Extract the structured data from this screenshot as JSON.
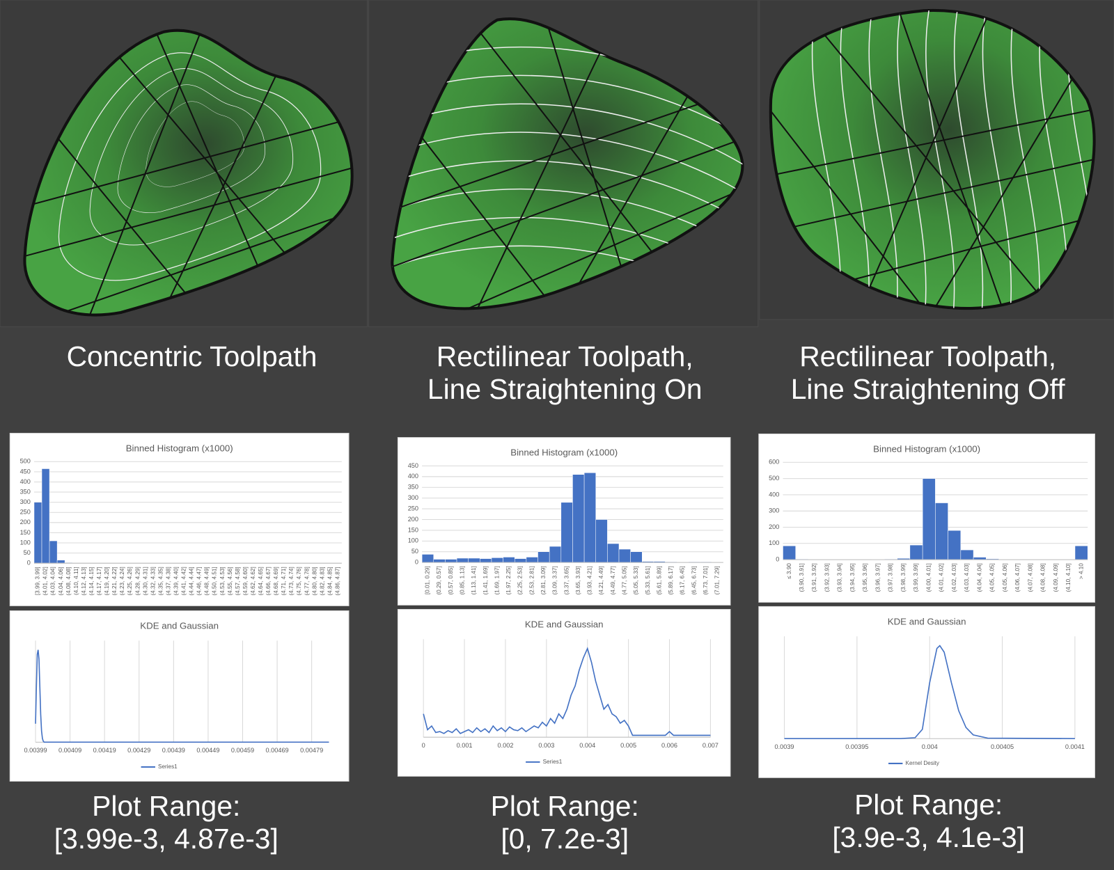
{
  "captions": [
    [
      "Concentric Toolpath"
    ],
    [
      "Rectilinear Toolpath,",
      "Line Straightening On"
    ],
    [
      "Rectilinear Toolpath,",
      "Line Straightening Off"
    ]
  ],
  "plot_ranges": [
    [
      "Plot Range:",
      "[3.99e-3, 4.87e-3]"
    ],
    [
      "Plot Range:",
      "[0, 7.2e-3]"
    ],
    [
      "Plot Range:",
      "[3.9e-3, 4.1e-3]"
    ]
  ],
  "chart_data": [
    {
      "type": "bar",
      "title": "Binned Histogram (x1000)",
      "color": "#4472c4",
      "grid": true,
      "categories": [
        "[3.99, 3.99]",
        "(4.01, 4.02]",
        "(4.03, 4.04]",
        "(4.04, 4.06]",
        "(4.08, 4.08]",
        "(4.10, 4.11]",
        "(4.12, 4.13]",
        "(4.14, 4.15]",
        "(4.17, 4.17]",
        "(4.19, 4.20]",
        "(4.21, 4.22]",
        "(4.23, 4.24]",
        "(4.25, 4.26]",
        "(4.28, 4.29]",
        "(4.30, 4.31]",
        "(4.32, 4.33]",
        "(4.35, 4.35]",
        "(4.37, 4.38]",
        "(4.39, 4.40]",
        "(4.41, 4.42]",
        "(4.44, 4.44]",
        "(4.46, 4.47]",
        "(4.48, 4.49]",
        "(4.50, 4.51]",
        "(4.53, 4.53]",
        "(4.55, 4.56]",
        "(4.57, 4.58]",
        "(4.59, 4.60]",
        "(4.62, 4.62]",
        "(4.64, 4.65]",
        "(4.66, 4.67]",
        "(4.68, 4.69]",
        "(4.71, 4.71]",
        "(4.73, 4.74]",
        "(4.75, 4.76]",
        "(4.77, 4.78]",
        "(4.80, 4.80]",
        "(4.82, 4.83]",
        "(4.84, 4.85]",
        "(4.86, 4.87]"
      ],
      "values": [
        300,
        465,
        110,
        15,
        3,
        0,
        0,
        0,
        0,
        0,
        0,
        0,
        0,
        0,
        0,
        0,
        0,
        0,
        0,
        0,
        0,
        0,
        0,
        0,
        0,
        0,
        0,
        0,
        0,
        0,
        0,
        0,
        0,
        0,
        0,
        0,
        0,
        0,
        0,
        0
      ],
      "ylim": [
        0,
        500
      ],
      "yticks": [
        0,
        50,
        100,
        150,
        200,
        250,
        300,
        350,
        400,
        450,
        500
      ]
    },
    {
      "type": "bar",
      "title": "Binned Histogram (x1000)",
      "color": "#4472c4",
      "grid": true,
      "categories": [
        "[0.01, 0.29]",
        "(0.29, 0.57]",
        "(0.57, 0.85]",
        "(0.85, 1.13]",
        "(1.13, 1.41]",
        "(1.41, 1.69]",
        "(1.69, 1.97]",
        "(1.97, 2.25]",
        "(2.25, 2.53]",
        "(2.53, 2.81]",
        "(2.81, 3.09]",
        "(3.09, 3.37]",
        "(3.37, 3.65]",
        "(3.65, 3.93]",
        "(3.93, 4.21]",
        "(4.21, 4.49]",
        "(4.49, 4.77]",
        "(4.77, 5.05]",
        "(5.05, 5.33]",
        "(5.33, 5.61]",
        "(5.61, 5.89]",
        "(5.89, 6.17]",
        "(6.17, 6.45]",
        "(6.45, 6.73]",
        "(6.73, 7.01]",
        "(7.01, 7.29]"
      ],
      "values": [
        38,
        15,
        15,
        20,
        20,
        18,
        22,
        25,
        18,
        25,
        50,
        75,
        280,
        410,
        418,
        200,
        88,
        62,
        50,
        5,
        5,
        3,
        0,
        3,
        3,
        0
      ],
      "ylim": [
        0,
        450
      ],
      "yticks": [
        0,
        50,
        100,
        150,
        200,
        250,
        300,
        350,
        400,
        450
      ]
    },
    {
      "type": "bar",
      "title": "Binned Histogram (x1000)",
      "color": "#4472c4",
      "grid": true,
      "categories": [
        "≤ 3.90",
        "(3.90, 3.91]",
        "(3.91, 3.92]",
        "(3.92, 3.93]",
        "(3.93, 3.94]",
        "(3.94, 3.95]",
        "(3.95, 3.96]",
        "(3.96, 3.97]",
        "(3.97, 3.98]",
        "(3.98, 3.99]",
        "(3.99, 3.99]",
        "(4.00, 4.01]",
        "(4.01, 4.02]",
        "(4.02, 4.03]",
        "(4.03, 4.03]",
        "(4.04, 4.04]",
        "(4.05, 4.05]",
        "(4.05, 4.06]",
        "(4.06, 4.07]",
        "(4.07, 4.08]",
        "(4.08, 4.08]",
        "(4.09, 4.09]",
        "(4.10, 4.10]",
        "> 4.10"
      ],
      "values": [
        85,
        3,
        0,
        0,
        0,
        0,
        0,
        2,
        3,
        8,
        90,
        500,
        350,
        180,
        60,
        15,
        5,
        0,
        0,
        0,
        0,
        0,
        0,
        85
      ],
      "ylim": [
        0,
        600
      ],
      "yticks": [
        0,
        100,
        200,
        300,
        400,
        500,
        600
      ]
    },
    {
      "type": "line",
      "title": "KDE and Gaussian",
      "grid": true,
      "x": [
        0.00399,
        0.0039925,
        0.003995,
        0.0039975,
        0.004,
        0.0040025,
        0.004005,
        0.0040075,
        0.00401,
        0.0040125,
        0.004015,
        0.00484
      ],
      "series": [
        {
          "name": "Series1",
          "color": "#4472c4",
          "values": [
            0.2,
            0.6,
            0.95,
            1.0,
            0.9,
            0.6,
            0.3,
            0.12,
            0.04,
            0.01,
            0,
            0
          ]
        }
      ],
      "xlim": [
        0.00399,
        0.00484
      ],
      "xticks": [
        0.00399,
        0.00409,
        0.00419,
        0.00429,
        0.00439,
        0.00449,
        0.00459,
        0.00469,
        0.00479
      ],
      "ylim": [
        0,
        1.1
      ]
    },
    {
      "type": "line",
      "title": "KDE and Gaussian",
      "grid": true,
      "x": [
        0,
        0.0001,
        0.0002,
        0.0003,
        0.0004,
        0.0005,
        0.0006,
        0.0007,
        0.0008,
        0.0009,
        0.001,
        0.0011,
        0.0012,
        0.0013,
        0.0014,
        0.0015,
        0.0016,
        0.0017,
        0.0018,
        0.0019,
        0.002,
        0.0021,
        0.0022,
        0.0023,
        0.0024,
        0.0025,
        0.0026,
        0.0027,
        0.0028,
        0.0029,
        0.003,
        0.0031,
        0.0032,
        0.0033,
        0.0034,
        0.0035,
        0.0036,
        0.0037,
        0.0038,
        0.0039,
        0.004,
        0.0041,
        0.0042,
        0.0043,
        0.0044,
        0.0045,
        0.0046,
        0.0047,
        0.0048,
        0.0049,
        0.005,
        0.0051,
        0.0053,
        0.0055,
        0.0057,
        0.0059,
        0.006,
        0.0061,
        0.0063,
        0.0065,
        0.0067,
        0.0069,
        0.007
      ],
      "series": [
        {
          "name": "Series1",
          "color": "#4472c4",
          "values": [
            0.25,
            0.08,
            0.12,
            0.05,
            0.06,
            0.04,
            0.07,
            0.05,
            0.09,
            0.04,
            0.06,
            0.08,
            0.05,
            0.1,
            0.06,
            0.09,
            0.05,
            0.12,
            0.07,
            0.1,
            0.06,
            0.11,
            0.08,
            0.07,
            0.1,
            0.06,
            0.09,
            0.12,
            0.1,
            0.16,
            0.12,
            0.2,
            0.15,
            0.25,
            0.2,
            0.3,
            0.45,
            0.55,
            0.72,
            0.85,
            0.95,
            0.8,
            0.6,
            0.45,
            0.3,
            0.35,
            0.25,
            0.22,
            0.15,
            0.18,
            0.12,
            0.02,
            0.02,
            0.02,
            0.02,
            0.02,
            0.06,
            0.02,
            0.02,
            0.02,
            0.02,
            0.02,
            0.02
          ]
        }
      ],
      "xlim": [
        0,
        0.007
      ],
      "xticks": [
        0,
        0.001,
        0.002,
        0.003,
        0.004,
        0.005,
        0.006,
        0.007
      ],
      "ylim": [
        0,
        1.05
      ]
    },
    {
      "type": "line",
      "title": "KDE and Gaussian",
      "grid": true,
      "x": [
        0.0039,
        0.00398,
        0.00399,
        0.003995,
        0.004,
        0.004005,
        0.004007,
        0.00401,
        0.004015,
        0.00402,
        0.004025,
        0.00403,
        0.00404,
        0.0041
      ],
      "series": [
        {
          "name": "Kernel Desity",
          "color": "#4472c4",
          "values": [
            0,
            0,
            0.01,
            0.1,
            0.6,
            0.97,
            1.0,
            0.93,
            0.6,
            0.3,
            0.12,
            0.04,
            0.005,
            0
          ]
        }
      ],
      "xlim": [
        0.0039,
        0.0041
      ],
      "xticks": [
        0.0039,
        0.00395,
        0.004,
        0.00405,
        0.0041
      ],
      "ylim": [
        0,
        1.1
      ]
    }
  ]
}
